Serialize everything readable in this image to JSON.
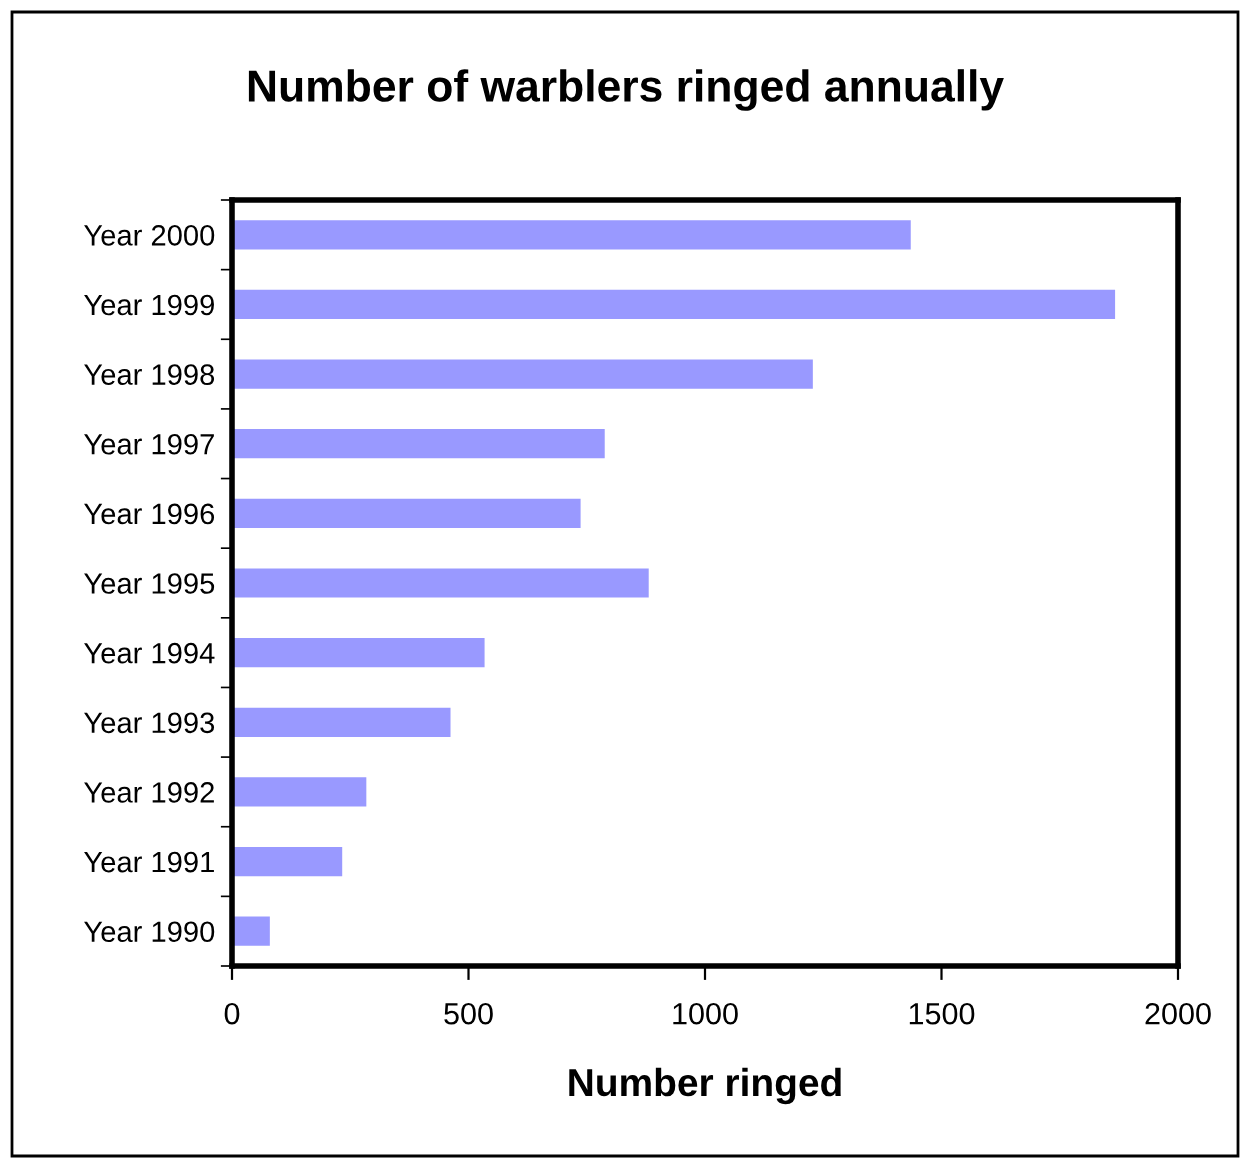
{
  "chart_data": {
    "type": "bar",
    "orientation": "horizontal",
    "title": "Number of warblers ringed annually",
    "xlabel": "Number ringed",
    "categories": [
      "Year 2000",
      "Year 1999",
      "Year 1998",
      "Year 1997",
      "Year 1996",
      "Year 1995",
      "Year 1994",
      "Year 1993",
      "Year 1992",
      "Year 1991",
      "Year 1990"
    ],
    "values": [
      1435,
      1867,
      1228,
      788,
      737,
      881,
      534,
      462,
      284,
      233,
      80
    ],
    "color": "#9999ff",
    "xlim": [
      0,
      2000
    ],
    "xticks": [
      0,
      500,
      1000,
      1500,
      2000
    ],
    "grid": false,
    "legend": false
  }
}
